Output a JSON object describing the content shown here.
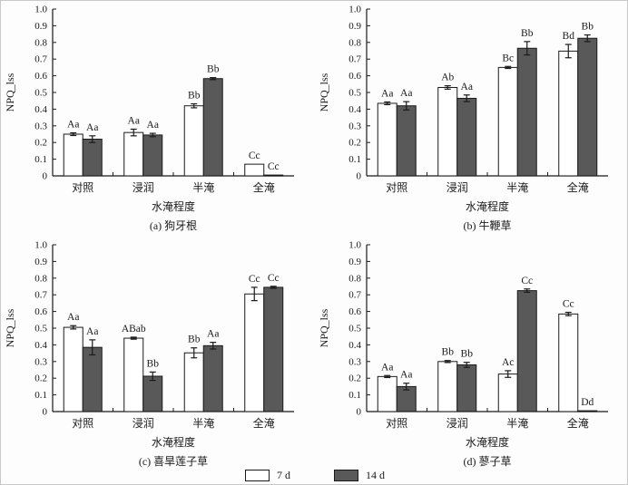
{
  "figure": {
    "background": "#fdfdfd"
  },
  "colors": {
    "axis": "#1a1a1a",
    "text": "#1a1a1a",
    "bar_stroke": "#1a1a1a",
    "series_7d_fill": "#ffffff",
    "series_14d_fill": "#595959"
  },
  "legend": {
    "items": [
      {
        "label": "7 d",
        "color": "#ffffff"
      },
      {
        "label": "14 d",
        "color": "#595959"
      }
    ]
  },
  "chart_data": [
    {
      "id": "a",
      "type": "bar",
      "caption": "(a) 狗牙根",
      "xlabel": "水淹程度",
      "ylabel": "NPQ_lss",
      "ylim": [
        0,
        1.0
      ],
      "ytick_step": 0.1,
      "categories": [
        "对照",
        "浸润",
        "半淹",
        "全淹"
      ],
      "series": [
        {
          "name": "7 d",
          "fill": "#ffffff",
          "values": [
            0.25,
            0.26,
            0.42,
            0.07
          ],
          "errors": [
            0.008,
            0.02,
            0.012,
            0
          ],
          "sig_labels": [
            "Aa",
            "Aa",
            "Bb",
            "Cc"
          ]
        },
        {
          "name": "14 d",
          "fill": "#595959",
          "values": [
            0.22,
            0.245,
            0.583,
            0.005
          ],
          "errors": [
            0.02,
            0.01,
            0.006,
            0
          ],
          "sig_labels": [
            "Aa",
            "Aa",
            "Bb",
            "Cc"
          ]
        }
      ]
    },
    {
      "id": "b",
      "type": "bar",
      "caption": "(b) 牛鞭草",
      "xlabel": "水淹程度",
      "ylabel": "NPQ_lss",
      "ylim": [
        0,
        1.0
      ],
      "ytick_step": 0.1,
      "categories": [
        "对照",
        "浸润",
        "半淹",
        "全淹"
      ],
      "series": [
        {
          "name": "7 d",
          "fill": "#ffffff",
          "values": [
            0.435,
            0.53,
            0.65,
            0.748
          ],
          "errors": [
            0.008,
            0.01,
            0.006,
            0.04
          ],
          "sig_labels": [
            "Aa",
            "Ab",
            "Bc",
            "Bd"
          ]
        },
        {
          "name": "14 d",
          "fill": "#595959",
          "values": [
            0.42,
            0.465,
            0.765,
            0.825
          ],
          "errors": [
            0.025,
            0.02,
            0.04,
            0.02
          ],
          "sig_labels": [
            "Aa",
            "Aa",
            "Bb",
            "Bb"
          ]
        }
      ]
    },
    {
      "id": "c",
      "type": "bar",
      "caption": "(c) 喜旱莲子草",
      "xlabel": "水淹程度",
      "ylabel": "NPQ_lss",
      "ylim": [
        0,
        1.0
      ],
      "ytick_step": 0.1,
      "categories": [
        "对照",
        "浸润",
        "半淹",
        "全淹"
      ],
      "series": [
        {
          "name": "7 d",
          "fill": "#ffffff",
          "values": [
            0.505,
            0.44,
            0.352,
            0.705
          ],
          "errors": [
            0.01,
            0.006,
            0.03,
            0.04
          ],
          "sig_labels": [
            "Aa",
            "ABab",
            "Bb",
            "Cc"
          ]
        },
        {
          "name": "14 d",
          "fill": "#595959",
          "values": [
            0.385,
            0.212,
            0.395,
            0.745
          ],
          "errors": [
            0.045,
            0.025,
            0.02,
            0.006
          ],
          "sig_labels": [
            "Aa",
            "Bb",
            "Aa",
            "Cc"
          ]
        }
      ]
    },
    {
      "id": "d",
      "type": "bar",
      "caption": "(d) 蓼子草",
      "xlabel": "水淹程度",
      "ylabel": "NPQ_lss",
      "ylim": [
        0,
        1.0
      ],
      "ytick_step": 0.1,
      "categories": [
        "对照",
        "浸润",
        "半淹",
        "全淹"
      ],
      "series": [
        {
          "name": "7 d",
          "fill": "#ffffff",
          "values": [
            0.21,
            0.3,
            0.225,
            0.585
          ],
          "errors": [
            0.006,
            0.006,
            0.02,
            0.01
          ],
          "sig_labels": [
            "Aa",
            "Bb",
            "Ac",
            "Cc"
          ]
        },
        {
          "name": "14 d",
          "fill": "#595959",
          "values": [
            0.15,
            0.28,
            0.725,
            0.005
          ],
          "errors": [
            0.02,
            0.015,
            0.01,
            0
          ],
          "sig_labels": [
            "Aa",
            "Bb",
            "Cc",
            "Dd"
          ]
        }
      ]
    }
  ]
}
